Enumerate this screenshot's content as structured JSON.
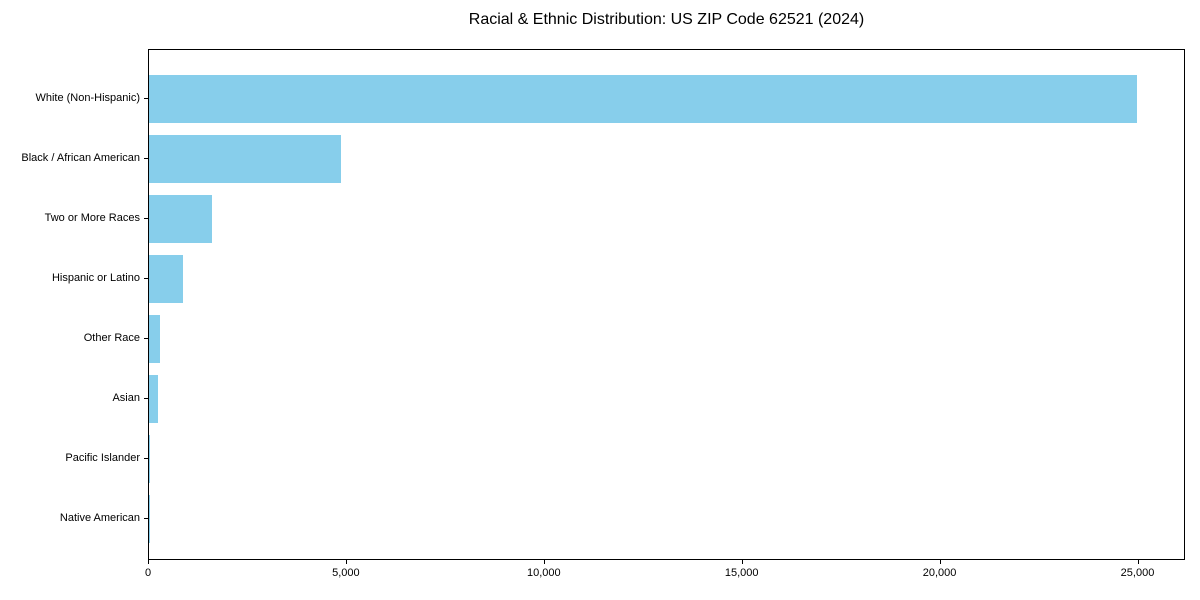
{
  "colors": {
    "background": "#ffffff",
    "bar": "#87CEEB",
    "axis": "#000000",
    "text": "#000000"
  },
  "chart_data": {
    "type": "bar",
    "orientation": "horizontal",
    "title": "Racial & Ethnic Distribution: US ZIP Code 62521 (2024)",
    "categories": [
      "White (Non-Hispanic)",
      "Black / African American",
      "Two or More Races",
      "Hispanic or Latino",
      "Other Race",
      "Asian",
      "Pacific Islander",
      "Native American"
    ],
    "values": [
      24970,
      4850,
      1580,
      850,
      280,
      230,
      25,
      12
    ],
    "xlabel": "",
    "ylabel": "",
    "xlim": [
      0,
      26200
    ],
    "xticks": {
      "values": [
        0,
        5000,
        10000,
        15000,
        20000,
        25000
      ],
      "labels": [
        "0",
        "5,000",
        "10,000",
        "15,000",
        "20,000",
        "25,000"
      ]
    },
    "grid": false,
    "legend": false,
    "bar_color": "#87CEEB"
  }
}
